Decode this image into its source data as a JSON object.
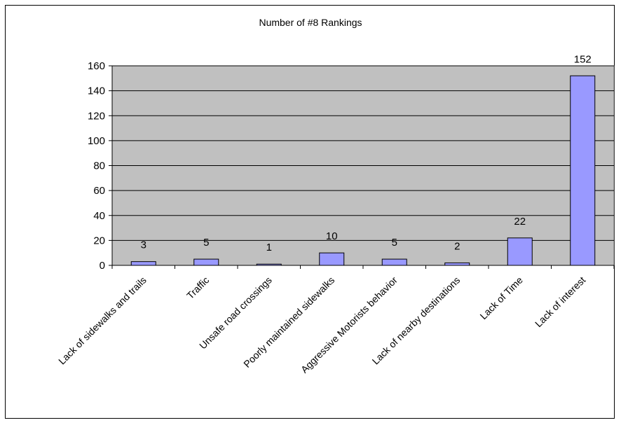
{
  "chart_data": {
    "type": "bar",
    "title": "Number of #8 Rankings",
    "categories": [
      "Lack of sidewalks and trails",
      "Traffic",
      "Unsafe road crossings",
      "Poorly maintained sidewalks",
      "Aggressive Motorists behavior",
      "Lack of nearby destinations",
      "Lack of Time",
      "Lack of interest"
    ],
    "values": [
      3,
      5,
      1,
      10,
      5,
      2,
      22,
      152
    ],
    "data_labels": [
      "3",
      "5",
      "1",
      "10",
      "5",
      "2",
      "22",
      "152"
    ],
    "ylim": [
      0,
      160
    ],
    "yticks": [
      0,
      20,
      40,
      60,
      80,
      100,
      120,
      140,
      160
    ],
    "ytick_labels": [
      "0",
      "20",
      "40",
      "60",
      "80",
      "100",
      "120",
      "140",
      "160"
    ],
    "grid": true,
    "legend": "none",
    "colors": {
      "plot_background": "#c0c0c0",
      "bar_fill": "#9999ff",
      "bar_stroke": "#000000",
      "gridline": "#000000"
    }
  }
}
